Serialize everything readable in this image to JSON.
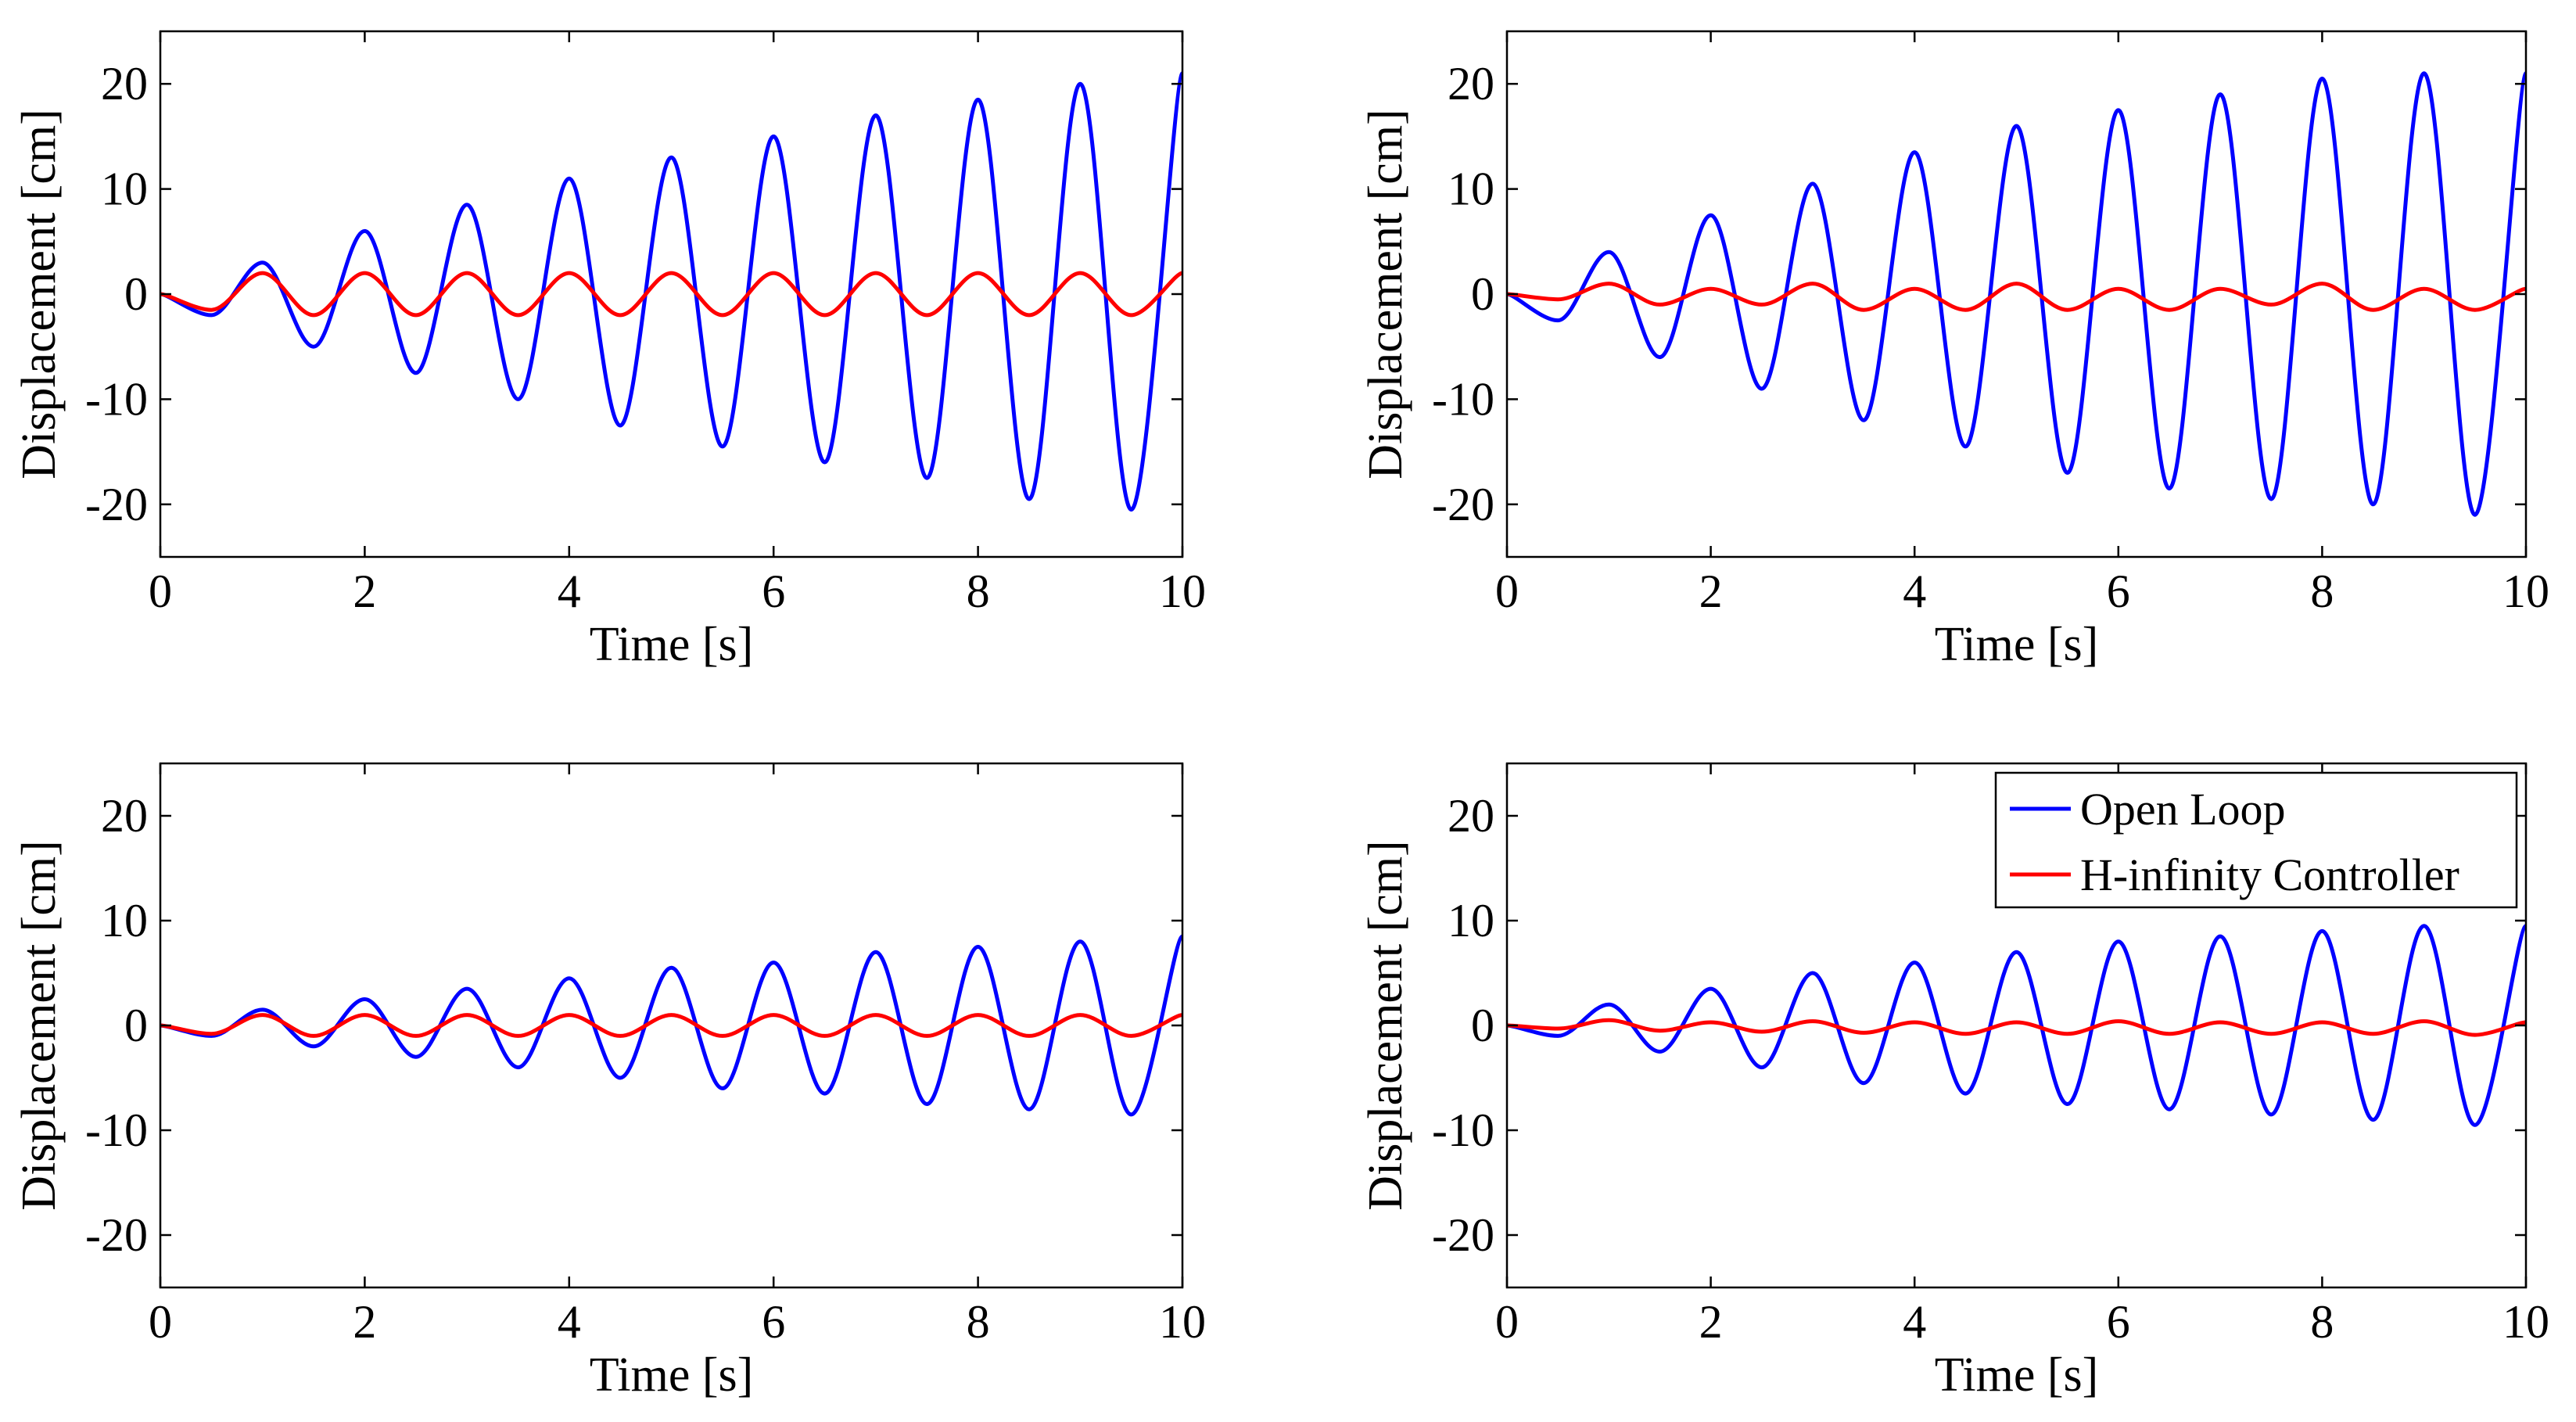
{
  "colors": {
    "open_loop": "#0000ff",
    "h_infinity": "#ff0000",
    "axes": "#000000",
    "background": "#ffffff"
  },
  "legend": {
    "placement": "top-right",
    "panel": 3,
    "items": [
      "Open Loop",
      "H-infinity Controller"
    ]
  },
  "chart_data": [
    {
      "type": "line",
      "xlabel": "Time [s]",
      "ylabel": "Displacement [cm]",
      "xlim": [
        0,
        10
      ],
      "ylim": [
        -25,
        25
      ],
      "xticks": [
        "0",
        "2",
        "4",
        "6",
        "8",
        "10"
      ],
      "yticks": [
        "-20",
        "-10",
        "0",
        "10",
        "20"
      ],
      "series": [
        {
          "name": "Open Loop",
          "color": "#0000ff",
          "x": [
            0,
            0.5,
            1.0,
            1.5,
            2.0,
            2.5,
            3.0,
            3.5,
            4.0,
            4.5,
            5.0,
            5.5,
            6.0,
            6.5,
            7.0,
            7.5,
            8.0,
            8.5,
            9.0,
            9.5,
            10.0
          ],
          "y": [
            0,
            -2,
            3,
            -5,
            6,
            -7.5,
            8.5,
            -10,
            11,
            -12.5,
            13,
            -14.5,
            15,
            -16,
            17,
            -17.5,
            18.5,
            -19.5,
            20,
            -20.5,
            21
          ]
        },
        {
          "name": "H-infinity Controller",
          "color": "#ff0000",
          "x": [
            0,
            0.5,
            1.0,
            1.5,
            2.0,
            2.5,
            3.0,
            3.5,
            4.0,
            4.5,
            5.0,
            5.5,
            6.0,
            6.5,
            7.0,
            7.5,
            8.0,
            8.5,
            9.0,
            9.5,
            10.0
          ],
          "y": [
            0,
            -1.5,
            2,
            -2,
            2,
            -2,
            2,
            -2,
            2,
            -2,
            2,
            -2,
            2,
            -2,
            2,
            -2,
            2,
            -2,
            2,
            -2,
            2
          ]
        }
      ]
    },
    {
      "type": "line",
      "xlabel": "Time [s]",
      "ylabel": "Displacement [cm]",
      "xlim": [
        0,
        10
      ],
      "ylim": [
        -25,
        25
      ],
      "xticks": [
        "0",
        "2",
        "4",
        "6",
        "8",
        "10"
      ],
      "yticks": [
        "-20",
        "-10",
        "0",
        "10",
        "20"
      ],
      "series": [
        {
          "name": "Open Loop",
          "color": "#0000ff",
          "x": [
            0,
            0.5,
            1.0,
            1.5,
            2.0,
            2.5,
            3.0,
            3.5,
            4.0,
            4.5,
            5.0,
            5.5,
            6.0,
            6.5,
            7.0,
            7.5,
            8.0,
            8.5,
            9.0,
            9.5,
            10.0
          ],
          "y": [
            0,
            -2.5,
            4,
            -6,
            7.5,
            -9,
            10.5,
            -12,
            13.5,
            -14.5,
            16,
            -17,
            17.5,
            -18.5,
            19,
            -19.5,
            20.5,
            -20,
            21,
            -21,
            21
          ]
        },
        {
          "name": "H-infinity Controller",
          "color": "#ff0000",
          "x": [
            0,
            0.5,
            1.0,
            1.5,
            2.0,
            2.5,
            3.0,
            3.5,
            4.0,
            4.5,
            5.0,
            5.5,
            6.0,
            6.5,
            7.0,
            7.5,
            8.0,
            8.5,
            9.0,
            9.5,
            10.0
          ],
          "y": [
            0,
            -0.5,
            1,
            -1,
            0.5,
            -1,
            1,
            -1.5,
            0.5,
            -1.5,
            1,
            -1.5,
            0.5,
            -1.5,
            0.5,
            -1,
            1,
            -1.5,
            0.5,
            -1.5,
            0.5
          ]
        }
      ]
    },
    {
      "type": "line",
      "xlabel": "Time [s]",
      "ylabel": "Displacement [cm]",
      "xlim": [
        0,
        10
      ],
      "ylim": [
        -25,
        25
      ],
      "xticks": [
        "0",
        "2",
        "4",
        "6",
        "8",
        "10"
      ],
      "yticks": [
        "-20",
        "-10",
        "0",
        "10",
        "20"
      ],
      "series": [
        {
          "name": "Open Loop",
          "color": "#0000ff",
          "x": [
            0,
            0.5,
            1.0,
            1.5,
            2.0,
            2.5,
            3.0,
            3.5,
            4.0,
            4.5,
            5.0,
            5.5,
            6.0,
            6.5,
            7.0,
            7.5,
            8.0,
            8.5,
            9.0,
            9.5,
            10.0
          ],
          "y": [
            0,
            -1,
            1.5,
            -2,
            2.5,
            -3,
            3.5,
            -4,
            4.5,
            -5,
            5.5,
            -6,
            6,
            -6.5,
            7,
            -7.5,
            7.5,
            -8,
            8,
            -8.5,
            8.5
          ]
        },
        {
          "name": "H-infinity Controller",
          "color": "#ff0000",
          "x": [
            0,
            0.5,
            1.0,
            1.5,
            2.0,
            2.5,
            3.0,
            3.5,
            4.0,
            4.5,
            5.0,
            5.5,
            6.0,
            6.5,
            7.0,
            7.5,
            8.0,
            8.5,
            9.0,
            9.5,
            10.0
          ],
          "y": [
            0,
            -0.8,
            1,
            -1,
            1,
            -1,
            1,
            -1,
            1,
            -1,
            1,
            -1,
            1,
            -1,
            1,
            -1,
            1,
            -1,
            1,
            -1,
            1
          ]
        }
      ]
    },
    {
      "type": "line",
      "xlabel": "Time [s]",
      "ylabel": "Displacement [cm]",
      "xlim": [
        0,
        10
      ],
      "ylim": [
        -25,
        25
      ],
      "xticks": [
        "0",
        "2",
        "4",
        "6",
        "8",
        "10"
      ],
      "yticks": [
        "-20",
        "-10",
        "0",
        "10",
        "20"
      ],
      "series": [
        {
          "name": "Open Loop",
          "color": "#0000ff",
          "x": [
            0,
            0.5,
            1.0,
            1.5,
            2.0,
            2.5,
            3.0,
            3.5,
            4.0,
            4.5,
            5.0,
            5.5,
            6.0,
            6.5,
            7.0,
            7.5,
            8.0,
            8.5,
            9.0,
            9.5,
            10.0
          ],
          "y": [
            0,
            -1,
            2,
            -2.5,
            3.5,
            -4,
            5,
            -5.5,
            6,
            -6.5,
            7,
            -7.5,
            8,
            -8,
            8.5,
            -8.5,
            9,
            -9,
            9.5,
            -9.5,
            9.5
          ]
        },
        {
          "name": "H-infinity Controller",
          "color": "#ff0000",
          "x": [
            0,
            0.5,
            1.0,
            1.5,
            2.0,
            2.5,
            3.0,
            3.5,
            4.0,
            4.5,
            5.0,
            5.5,
            6.0,
            6.5,
            7.0,
            7.5,
            8.0,
            8.5,
            9.0,
            9.5,
            10.0
          ],
          "y": [
            0,
            -0.3,
            0.5,
            -0.5,
            0.3,
            -0.6,
            0.4,
            -0.7,
            0.3,
            -0.8,
            0.3,
            -0.8,
            0.4,
            -0.8,
            0.3,
            -0.8,
            0.3,
            -0.8,
            0.4,
            -0.9,
            0.3
          ]
        }
      ]
    }
  ]
}
